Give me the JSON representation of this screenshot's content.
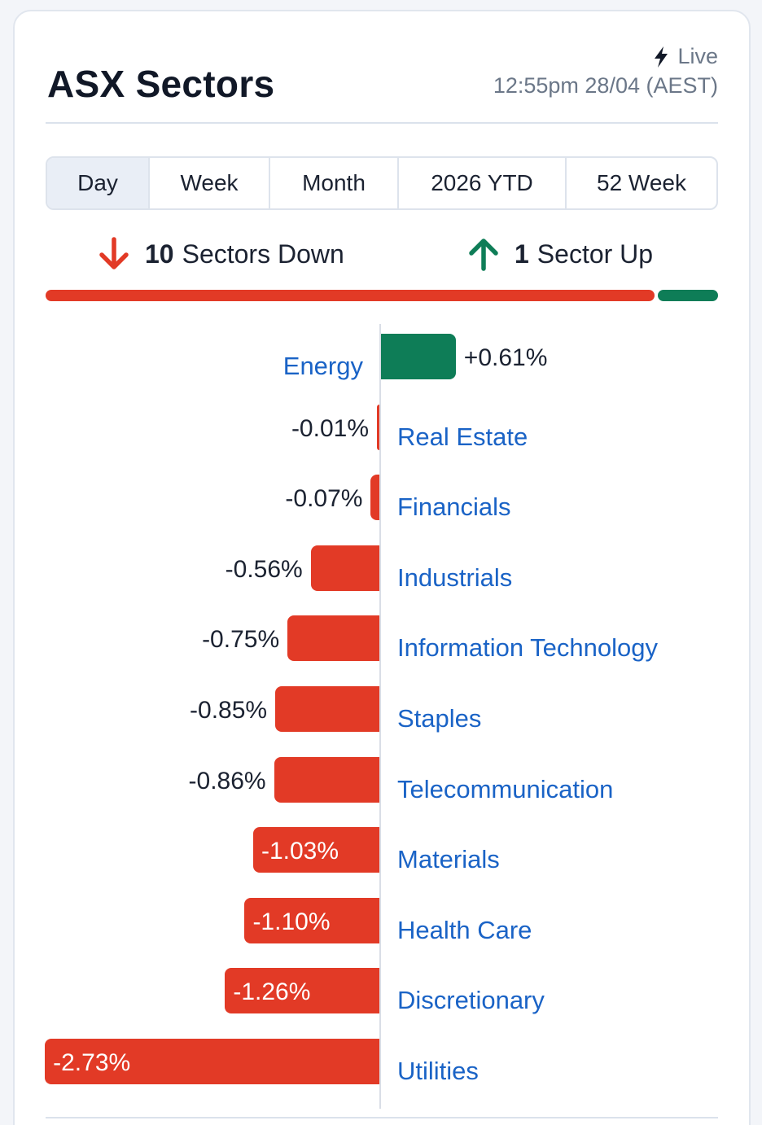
{
  "header": {
    "title": "ASX Sectors",
    "live_label": "Live",
    "timestamp": "12:55pm 28/04 (AEST)"
  },
  "tabs": [
    {
      "label": "Day",
      "active": true
    },
    {
      "label": "Week",
      "active": false
    },
    {
      "label": "Month",
      "active": false
    },
    {
      "label": "2026 YTD",
      "active": false
    },
    {
      "label": "52 Week",
      "active": false
    }
  ],
  "summary": {
    "down_count": "10",
    "down_label": "Sectors Down",
    "up_count": "1",
    "up_label": "Sector Up",
    "down_fraction": 0.909,
    "up_fraction": 0.091
  },
  "icons": {
    "live": "lightning-icon",
    "down": "arrow-down-icon",
    "up": "arrow-up-icon"
  },
  "colors": {
    "negative": "#e23a26",
    "positive": "#0e7d57",
    "link": "#1a63c6"
  },
  "chart_data": {
    "type": "bar",
    "orientation": "horizontal",
    "categories": [
      "Energy",
      "Real Estate",
      "Financials",
      "Industrials",
      "Information Technology",
      "Staples",
      "Telecommunication",
      "Materials",
      "Health Care",
      "Discretionary",
      "Utilities"
    ],
    "values": [
      0.61,
      -0.01,
      -0.07,
      -0.56,
      -0.75,
      -0.85,
      -0.86,
      -1.03,
      -1.1,
      -1.26,
      -2.73
    ],
    "labels": [
      "+0.61%",
      "-0.01%",
      "-0.07%",
      "-0.56%",
      "-0.75%",
      "-0.85%",
      "-0.86%",
      "-1.03%",
      "-1.10%",
      "-1.26%",
      "-2.73%"
    ],
    "unit": "%"
  }
}
